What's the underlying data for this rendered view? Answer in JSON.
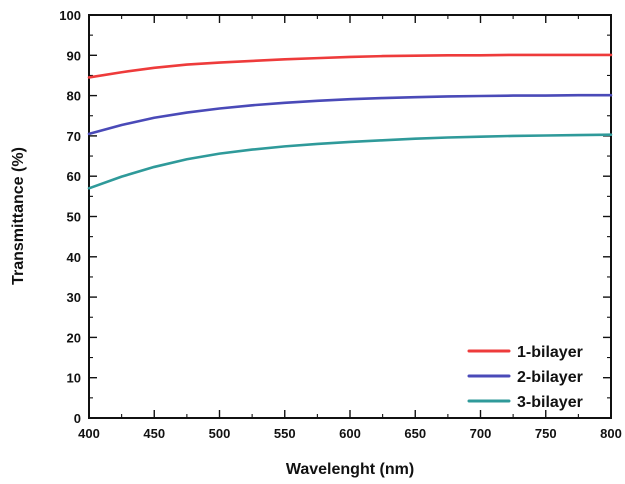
{
  "chart_data": {
    "type": "line",
    "title": "",
    "xlabel": "Wavelenght (nm)",
    "ylabel": "Transmittance (%)",
    "xlim": [
      400,
      800
    ],
    "ylim": [
      0,
      100
    ],
    "xticks": [
      400,
      450,
      500,
      550,
      600,
      650,
      700,
      750,
      800
    ],
    "yticks": [
      0,
      10,
      20,
      30,
      40,
      50,
      60,
      70,
      80,
      90,
      100
    ],
    "grid": false,
    "legend_position": "bottom-right",
    "x": [
      400,
      425,
      450,
      475,
      500,
      525,
      550,
      575,
      600,
      625,
      650,
      675,
      700,
      725,
      750,
      775,
      800
    ],
    "series": [
      {
        "name": "1-bilayer",
        "color": "#ee3b3b",
        "values": [
          84.5,
          85.8,
          86.9,
          87.7,
          88.2,
          88.6,
          89.0,
          89.3,
          89.6,
          89.8,
          89.9,
          90.0,
          90.0,
          90.1,
          90.1,
          90.1,
          90.1
        ]
      },
      {
        "name": "2-bilayer",
        "color": "#4a4ab8",
        "values": [
          70.5,
          72.7,
          74.5,
          75.8,
          76.8,
          77.6,
          78.2,
          78.7,
          79.1,
          79.4,
          79.6,
          79.8,
          79.9,
          80.0,
          80.0,
          80.1,
          80.1
        ]
      },
      {
        "name": "3-bilayer",
        "color": "#2f9a9a",
        "values": [
          57.0,
          59.9,
          62.3,
          64.2,
          65.6,
          66.6,
          67.4,
          68.0,
          68.5,
          68.9,
          69.3,
          69.6,
          69.8,
          70.0,
          70.1,
          70.2,
          70.3
        ]
      }
    ]
  }
}
